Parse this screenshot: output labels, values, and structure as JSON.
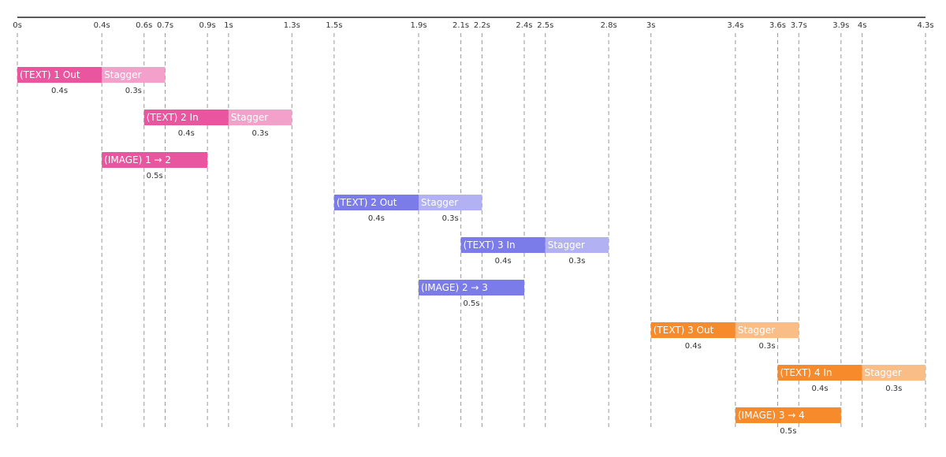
{
  "chart_data": {
    "type": "timeline",
    "xlim": [
      0,
      4.3
    ],
    "xticks": [
      {
        "value": 0,
        "label": "0s"
      },
      {
        "value": 0.4,
        "label": "0.4s"
      },
      {
        "value": 0.6,
        "label": "0.6s"
      },
      {
        "value": 0.7,
        "label": "0.7s"
      },
      {
        "value": 0.9,
        "label": "0.9s"
      },
      {
        "value": 1,
        "label": "1s"
      },
      {
        "value": 1.3,
        "label": "1.3s"
      },
      {
        "value": 1.5,
        "label": "1.5s"
      },
      {
        "value": 1.9,
        "label": "1.9s"
      },
      {
        "value": 2.1,
        "label": "2.1s"
      },
      {
        "value": 2.2,
        "label": "2.2s"
      },
      {
        "value": 2.4,
        "label": "2.4s"
      },
      {
        "value": 2.5,
        "label": "2.5s"
      },
      {
        "value": 2.8,
        "label": "2.8s"
      },
      {
        "value": 3,
        "label": "3s"
      },
      {
        "value": 3.4,
        "label": "3.4s"
      },
      {
        "value": 3.6,
        "label": "3.6s"
      },
      {
        "value": 3.7,
        "label": "3.7s"
      },
      {
        "value": 3.9,
        "label": "3.9s"
      },
      {
        "value": 4,
        "label": "4s"
      },
      {
        "value": 4.3,
        "label": "4.3s"
      }
    ],
    "grid": true,
    "rows": [
      {
        "segments": [
          {
            "name": "(TEXT) 1 Out",
            "start": 0,
            "duration": 0.4,
            "duration_label": "0.4s",
            "color": "#e9559e"
          },
          {
            "name": "Stagger",
            "start": 0.4,
            "duration": 0.3,
            "duration_label": "0.3s",
            "color": "#f3a1ca"
          }
        ]
      },
      {
        "segments": [
          {
            "name": "(TEXT) 2 In",
            "start": 0.6,
            "duration": 0.4,
            "duration_label": "0.4s",
            "color": "#e9559e"
          },
          {
            "name": "Stagger",
            "start": 1,
            "duration": 0.3,
            "duration_label": "0.3s",
            "color": "#f3a1ca"
          }
        ]
      },
      {
        "segments": [
          {
            "name": "(IMAGE) 1 → 2",
            "start": 0.4,
            "duration": 0.5,
            "duration_label": "0.5s",
            "color": "#e9559e"
          }
        ]
      },
      {
        "segments": [
          {
            "name": "(TEXT) 2 Out",
            "start": 1.5,
            "duration": 0.4,
            "duration_label": "0.4s",
            "color": "#7b7be9"
          },
          {
            "name": "Stagger",
            "start": 1.9,
            "duration": 0.3,
            "duration_label": "0.3s",
            "color": "#b1b1f3"
          }
        ]
      },
      {
        "segments": [
          {
            "name": "(TEXT) 3 In",
            "start": 2.1,
            "duration": 0.4,
            "duration_label": "0.4s",
            "color": "#7b7be9"
          },
          {
            "name": "Stagger",
            "start": 2.5,
            "duration": 0.3,
            "duration_label": "0.3s",
            "color": "#b1b1f3"
          }
        ]
      },
      {
        "segments": [
          {
            "name": "(IMAGE) 2 → 3",
            "start": 1.9,
            "duration": 0.5,
            "duration_label": "0.5s",
            "color": "#7b7be9"
          }
        ]
      },
      {
        "segments": [
          {
            "name": "(TEXT) 3 Out",
            "start": 3,
            "duration": 0.4,
            "duration_label": "0.4s",
            "color": "#f78a2b"
          },
          {
            "name": "Stagger",
            "start": 3.4,
            "duration": 0.3,
            "duration_label": "0.3s",
            "color": "#f9bd87"
          }
        ]
      },
      {
        "segments": [
          {
            "name": "(TEXT) 4 In",
            "start": 3.6,
            "duration": 0.4,
            "duration_label": "0.4s",
            "color": "#f78a2b"
          },
          {
            "name": "Stagger",
            "start": 4,
            "duration": 0.3,
            "duration_label": "0.3s",
            "color": "#f9bd87"
          }
        ]
      },
      {
        "segments": [
          {
            "name": "(IMAGE) 3 → 4",
            "start": 3.4,
            "duration": 0.5,
            "duration_label": "0.5s",
            "color": "#f78a2b"
          }
        ]
      }
    ]
  }
}
